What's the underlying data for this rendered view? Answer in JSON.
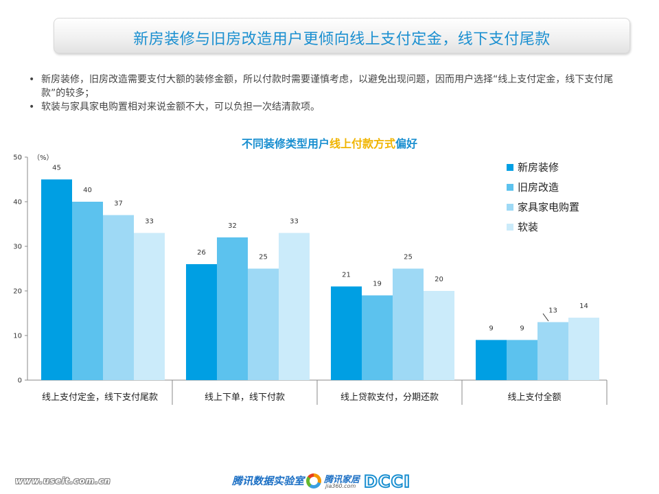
{
  "header": {
    "title": "新房装修与旧房改造用户更倾向线上支付定金，线下支付尾款"
  },
  "bullets": [
    "新房装修，旧房改造需要支付大额的装修金额，所以付款时需要谨慎考虑，以避免出现问题，因而用户选择“线上支付定金，线下支付尾款”的较多；",
    "软装与家具家电购置相对来说金额不大，可以负担一次结清款项。"
  ],
  "bullet_marker": "•",
  "chart_title": {
    "part1": "不同装修类型用户",
    "highlight": "线上付款方式",
    "part2": "偏好"
  },
  "chart_data": {
    "type": "bar",
    "unit_label": "（%）",
    "ylim": [
      0,
      50
    ],
    "yticks": [
      0,
      10,
      20,
      30,
      40,
      50
    ],
    "categories": [
      "线上支付定金，线下支付尾款",
      "线上下单，线下付款",
      "线上贷款支付，分期还款",
      "线上支付全额"
    ],
    "series": [
      {
        "name": "新房装修",
        "color": "#009fe3",
        "values": [
          45,
          26,
          21,
          9
        ]
      },
      {
        "name": "旧房改造",
        "color": "#5cc2ee",
        "values": [
          40,
          32,
          19,
          9
        ]
      },
      {
        "name": "家具家电购置",
        "color": "#9ed9f5",
        "values": [
          37,
          25,
          25,
          13
        ]
      },
      {
        "name": "软装",
        "color": "#cbebfa",
        "values": [
          33,
          33,
          20,
          14
        ]
      }
    ],
    "legend_position": "top-right",
    "grid": false
  },
  "footer": {
    "url": "www.useit.com.cn",
    "lab_logo": "腾讯数据实验室",
    "jia_logo": "腾讯家居",
    "jia_sub": "jia360.com",
    "dcci_logo": "DCCI"
  }
}
